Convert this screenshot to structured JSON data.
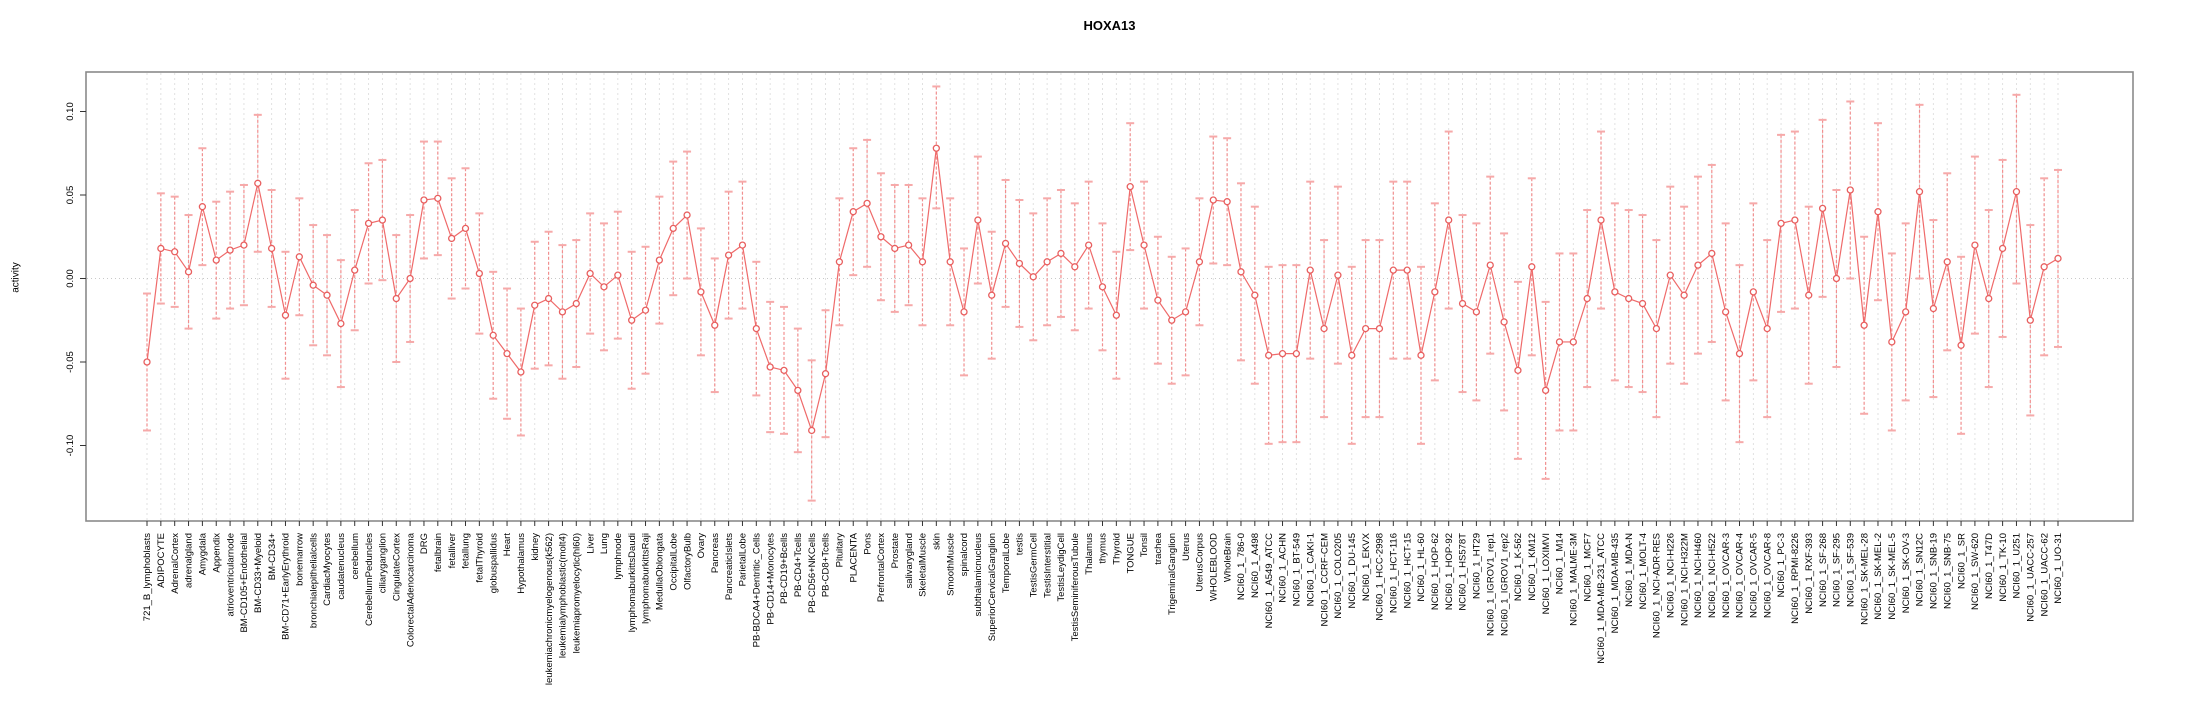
{
  "page": {
    "title": "HOXA13"
  },
  "chart_data": {
    "type": "line",
    "title": "HOXA13",
    "xlabel": "",
    "ylabel": "activity",
    "ylim": [
      -0.145,
      0.124
    ],
    "yticks": [
      -0.1,
      -0.05,
      0.0,
      0.05,
      0.1
    ],
    "ytick_labels": [
      "-0.10",
      "-0.05",
      "0.00",
      "0.05",
      "0.10"
    ],
    "grid": "vertical dashed gridline at every category; dotted horizontal line at y=0",
    "legend_position": "none",
    "marker": "open-circle",
    "error_bars": true,
    "colors": {
      "line": "#ef6a6a",
      "marker": "#e85f5f",
      "error_bar": "#f28f8f",
      "error_cap": "#f6a9a9",
      "grid": "#dedede",
      "zero_line": "#c9c9c9",
      "box": "#8a8a8a",
      "text": "#000000"
    },
    "categories": [
      "721_B_lymphoblasts",
      "ADIPOCYTE",
      "AdrenalCortex",
      "adrenalgland",
      "Amygdala",
      "Appendix",
      "atrioventricularnode",
      "BM-CD105+Endothelial",
      "BM-CD33+Myeloid",
      "BM-CD34+",
      "BM-CD71+EarlyErythroid",
      "bonemarrow",
      "bronchialepithelialcells",
      "CardiacMyocytes",
      "caudatenucleus",
      "cerebellum",
      "CerebellumPeduncles",
      "ciliaryganglion",
      "CingulateCortex",
      "ColorectalAdenocarcinoma",
      "DRG",
      "fetalbrain",
      "fetalliver",
      "fetallung",
      "fetalThyroid",
      "globuspallidus",
      "Heart",
      "Hypothalamus",
      "kidney",
      "leukemiachronicmyelogenous(k562)",
      "leukemialymphoblastic(molt4)",
      "leukemiapromyelocytic(hl60)",
      "Liver",
      "Lung",
      "lymphnode",
      "lymphomaburkittsDaudi",
      "lymphomaburkittsRaji",
      "MedullaOblongata",
      "OccipitalLobe",
      "OlfactoryBulb",
      "Ovary",
      "Pancreas",
      "PancreaticIslets",
      "ParietalLobe",
      "PB-BDCA4+Dentritic_Cells",
      "PB-CD14+Monocytes",
      "PB-CD19+Bcells",
      "PB-CD4+Tcells",
      "PB-CD56+NKCells",
      "PB-CD8+Tcells",
      "Pituitary",
      "PLACENTA",
      "Pons",
      "PrefrontalCortex",
      "Prostate",
      "salivarygland",
      "SkeletalMuscle",
      "skin",
      "SmoothMuscle",
      "spinalcord",
      "subthalamicnucleus",
      "SuperiorCervicalGanglion",
      "TemporalLobe",
      "testis",
      "TestisGermCell",
      "TestisInterstitial",
      "TestisLeydigCell",
      "TestisSeminiferousTubule",
      "Thalamus",
      "thymus",
      "Thyroid",
      "TONGUE",
      "Tonsil",
      "trachea",
      "TrigeminalGanglion",
      "Uterus",
      "UterusCorpus",
      "WHOLEBLOOD",
      "WholeBrain",
      "NCI60_1_786-0",
      "NCI60_1_A498",
      "NCI60_1_A549_ATCC",
      "NCI60_1_ACHN",
      "NCI60_1_BT-549",
      "NCI60_1_CAKI-1",
      "NCI60_1_CCRF-CEM",
      "NCI60_1_COLO205",
      "NCI60_1_DU-145",
      "NCI60_1_EKVX",
      "NCI60_1_HCC-2998",
      "NCI60_1_HCT-116",
      "NCI60_1_HCT-15",
      "NCI60_1_HL-60",
      "NCI60_1_HOP-62",
      "NCI60_1_HOP-92",
      "NCI60_1_HS578T",
      "NCI60_1_HT29",
      "NCI60_1_IGROV1_rep1",
      "NCI60_1_IGROV1_rep2",
      "NCI60_1_K-562",
      "NCI60_1_KM12",
      "NCI60_1_LOXIMVI",
      "NCI60_1_M14",
      "NCI60_1_MALME-3M",
      "NCI60_1_MCF7",
      "NCI60_1_MDA-MB-231_ATCC",
      "NCI60_1_MDA-MB-435",
      "NCI60_1_MDA-N",
      "NCI60_1_MOLT-4",
      "NCI60_1_NCI-ADR-RES",
      "NCI60_1_NCI-H226",
      "NCI60_1_NCI-H322M",
      "NCI60_1_NCI-H460",
      "NCI60_1_NCI-H522",
      "NCI60_1_OVCAR-3",
      "NCI60_1_OVCAR-4",
      "NCI60_1_OVCAR-5",
      "NCI60_1_OVCAR-8",
      "NCI60_1_PC-3",
      "NCI60_1_RPMI-8226",
      "NCI60_1_RXF-393",
      "NCI60_1_SF-268",
      "NCI60_1_SF-295",
      "NCI60_1_SF-539",
      "NCI60_1_SK-MEL-28",
      "NCI60_1_SK-MEL-2",
      "NCI60_1_SK-MEL-5",
      "NCI60_1_SK-OV-3",
      "NCI60_1_SN12C",
      "NCI60_1_SNB-19",
      "NCI60_1_SNB-75",
      "NCI60_1_SR",
      "NCI60_1_SW-620",
      "NCI60_1_T47D",
      "NCI60_1_TK-10",
      "NCI60_1_U251",
      "NCI60_1_UACC-257",
      "NCI60_1_UACC-62",
      "NCI60_1_UO-31"
    ],
    "series": [
      {
        "name": "activity",
        "values": [
          -0.05,
          0.018,
          0.016,
          0.004,
          0.043,
          0.011,
          0.017,
          0.02,
          0.057,
          0.018,
          -0.022,
          0.013,
          -0.004,
          -0.01,
          -0.027,
          0.005,
          0.033,
          0.035,
          -0.012,
          0.0,
          0.047,
          0.048,
          0.024,
          0.03,
          0.003,
          -0.034,
          -0.045,
          -0.056,
          -0.016,
          -0.012,
          -0.02,
          -0.015,
          0.003,
          -0.005,
          0.002,
          -0.025,
          -0.019,
          0.011,
          0.03,
          0.038,
          -0.008,
          -0.028,
          0.014,
          0.02,
          -0.03,
          -0.053,
          -0.055,
          -0.067,
          -0.091,
          -0.057,
          0.01,
          0.04,
          0.045,
          0.025,
          0.018,
          0.02,
          0.01,
          0.078,
          0.01,
          -0.02,
          0.035,
          -0.01,
          0.021,
          0.009,
          0.001,
          0.01,
          0.015,
          0.007,
          0.02,
          -0.005,
          -0.022,
          0.055,
          0.02,
          -0.013,
          -0.025,
          -0.02,
          0.01,
          0.047,
          0.046,
          0.004,
          -0.01,
          -0.046,
          -0.045,
          -0.045,
          0.005,
          -0.03,
          0.002,
          -0.046,
          -0.03,
          -0.03,
          0.005,
          0.005,
          -0.046,
          -0.008,
          0.035,
          -0.015,
          -0.02,
          0.008,
          -0.026,
          -0.055,
          0.007,
          -0.067,
          -0.038,
          -0.038,
          -0.012,
          0.035,
          -0.008,
          -0.012,
          -0.015,
          -0.03,
          0.002,
          -0.01,
          0.008,
          0.015,
          -0.02,
          -0.045,
          -0.008,
          -0.03,
          0.033,
          0.035,
          -0.01,
          0.042,
          0.0,
          0.053,
          -0.028,
          0.04,
          -0.038,
          -0.02,
          0.052,
          -0.018,
          0.01,
          -0.04,
          0.02,
          -0.012,
          0.018,
          0.052,
          -0.025,
          0.007,
          0.012
        ],
        "error_low": [
          -0.091,
          -0.015,
          -0.017,
          -0.03,
          0.008,
          -0.024,
          -0.018,
          -0.016,
          0.016,
          -0.017,
          -0.06,
          -0.022,
          -0.04,
          -0.046,
          -0.065,
          -0.031,
          -0.003,
          -0.001,
          -0.05,
          -0.038,
          0.012,
          0.014,
          -0.012,
          -0.006,
          -0.033,
          -0.072,
          -0.084,
          -0.094,
          -0.054,
          -0.052,
          -0.06,
          -0.053,
          -0.033,
          -0.043,
          -0.036,
          -0.066,
          -0.057,
          -0.027,
          -0.01,
          0.0,
          -0.046,
          -0.068,
          -0.024,
          -0.018,
          -0.07,
          -0.092,
          -0.093,
          -0.104,
          -0.133,
          -0.095,
          -0.028,
          0.002,
          0.007,
          -0.013,
          -0.02,
          -0.016,
          -0.028,
          0.042,
          -0.028,
          -0.058,
          -0.003,
          -0.048,
          -0.017,
          -0.029,
          -0.037,
          -0.028,
          -0.023,
          -0.031,
          -0.018,
          -0.043,
          -0.06,
          0.017,
          -0.018,
          -0.051,
          -0.063,
          -0.058,
          -0.028,
          0.009,
          0.008,
          -0.049,
          -0.063,
          -0.099,
          -0.098,
          -0.098,
          -0.048,
          -0.083,
          -0.051,
          -0.099,
          -0.083,
          -0.083,
          -0.048,
          -0.048,
          -0.099,
          -0.061,
          -0.018,
          -0.068,
          -0.073,
          -0.045,
          -0.079,
          -0.108,
          -0.046,
          -0.12,
          -0.091,
          -0.091,
          -0.065,
          -0.018,
          -0.061,
          -0.065,
          -0.068,
          -0.083,
          -0.051,
          -0.063,
          -0.045,
          -0.038,
          -0.073,
          -0.098,
          -0.061,
          -0.083,
          -0.02,
          -0.018,
          -0.063,
          -0.011,
          -0.053,
          0.0,
          -0.081,
          -0.013,
          -0.091,
          -0.073,
          0.0,
          -0.071,
          -0.043,
          -0.093,
          -0.033,
          -0.065,
          -0.035,
          -0.003,
          -0.082,
          -0.046,
          -0.041
        ],
        "error_high": [
          -0.009,
          0.051,
          0.049,
          0.038,
          0.078,
          0.046,
          0.052,
          0.056,
          0.098,
          0.053,
          0.016,
          0.048,
          0.032,
          0.026,
          0.011,
          0.041,
          0.069,
          0.071,
          0.026,
          0.038,
          0.082,
          0.082,
          0.06,
          0.066,
          0.039,
          0.004,
          -0.006,
          -0.018,
          0.022,
          0.028,
          0.02,
          0.023,
          0.039,
          0.033,
          0.04,
          0.016,
          0.019,
          0.049,
          0.07,
          0.076,
          0.03,
          0.012,
          0.052,
          0.058,
          0.01,
          -0.014,
          -0.017,
          -0.03,
          -0.049,
          -0.019,
          0.048,
          0.078,
          0.083,
          0.063,
          0.056,
          0.056,
          0.048,
          0.115,
          0.048,
          0.018,
          0.073,
          0.028,
          0.059,
          0.047,
          0.039,
          0.048,
          0.053,
          0.045,
          0.058,
          0.033,
          0.016,
          0.093,
          0.058,
          0.025,
          0.013,
          0.018,
          0.048,
          0.085,
          0.084,
          0.057,
          0.043,
          0.007,
          0.008,
          0.008,
          0.058,
          0.023,
          0.055,
          0.007,
          0.023,
          0.023,
          0.058,
          0.058,
          0.007,
          0.045,
          0.088,
          0.038,
          0.033,
          0.061,
          0.027,
          -0.002,
          0.06,
          -0.014,
          0.015,
          0.015,
          0.041,
          0.088,
          0.045,
          0.041,
          0.038,
          0.023,
          0.055,
          0.043,
          0.061,
          0.068,
          0.033,
          0.008,
          0.045,
          0.023,
          0.086,
          0.088,
          0.043,
          0.095,
          0.053,
          0.106,
          0.025,
          0.093,
          0.015,
          0.033,
          0.104,
          0.035,
          0.063,
          0.013,
          0.073,
          0.041,
          0.071,
          0.11,
          0.032,
          0.06,
          0.065
        ]
      }
    ]
  }
}
